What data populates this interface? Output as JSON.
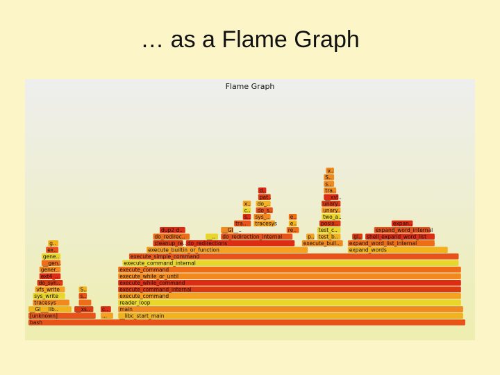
{
  "slide": {
    "title": "… as a Flame Graph"
  },
  "chart_data": {
    "type": "flamegraph",
    "title": "Flame Graph",
    "frames": [
      {
        "name": "bash",
        "depth": 0,
        "start": 0,
        "width": 1.0
      },
      {
        "name": "[unknown]",
        "depth": 1,
        "start": 0,
        "width": 0.155
      },
      {
        "name": "...",
        "depth": 1,
        "start": 0.165,
        "width": 0.03
      },
      {
        "name": "__libc_start_main",
        "depth": 1,
        "start": 0.205,
        "width": 0.79
      },
      {
        "name": "__GI___lib..",
        "depth": 2,
        "start": 0,
        "width": 0.1
      },
      {
        "name": "__xs..",
        "depth": 2,
        "start": 0.105,
        "width": 0.045
      },
      {
        "name": "c..",
        "depth": 2,
        "start": 0.165,
        "width": 0.025
      },
      {
        "name": "main",
        "depth": 2,
        "start": 0.205,
        "width": 0.79
      },
      {
        "name": "tracesys",
        "depth": 3,
        "start": 0.01,
        "width": 0.085
      },
      {
        "name": "",
        "depth": 3,
        "start": 0.115,
        "width": 0.03
      },
      {
        "name": "reader_loop",
        "depth": 3,
        "start": 0.205,
        "width": 0.785
      },
      {
        "name": "sys_write",
        "depth": 4,
        "start": 0.01,
        "width": 0.075
      },
      {
        "name": "s..",
        "depth": 4,
        "start": 0.115,
        "width": 0.02
      },
      {
        "name": "execute_command",
        "depth": 4,
        "start": 0.205,
        "width": 0.785
      },
      {
        "name": "vfs_write",
        "depth": 5,
        "start": 0.015,
        "width": 0.07
      },
      {
        "name": "S..",
        "depth": 5,
        "start": 0.115,
        "width": 0.02
      },
      {
        "name": "execute_command_internal",
        "depth": 5,
        "start": 0.205,
        "width": 0.785
      },
      {
        "name": "do_syn..",
        "depth": 6,
        "start": 0.02,
        "width": 0.06
      },
      {
        "name": "execute_while_command",
        "depth": 6,
        "start": 0.205,
        "width": 0.785
      },
      {
        "name": "ext4_..",
        "depth": 7,
        "start": 0.025,
        "width": 0.05
      },
      {
        "name": "execute_while_or_until",
        "depth": 7,
        "start": 0.205,
        "width": 0.785
      },
      {
        "name": "gener..",
        "depth": 8,
        "start": 0.025,
        "width": 0.05
      },
      {
        "name": "execute_command",
        "depth": 8,
        "start": 0.205,
        "width": 0.785
      },
      {
        "name": "__gen..",
        "depth": 9,
        "start": 0.03,
        "width": 0.045
      },
      {
        "name": "execute_command_internal",
        "depth": 9,
        "start": 0.215,
        "width": 0.77
      },
      {
        "name": "gene..",
        "depth": 10,
        "start": 0.03,
        "width": 0.045
      },
      {
        "name": "execute_simple_command",
        "depth": 10,
        "start": 0.23,
        "width": 0.755
      },
      {
        "name": "ex..",
        "depth": 11,
        "start": 0.04,
        "width": 0.03
      },
      {
        "name": "execute_builtin_or_function",
        "depth": 11,
        "start": 0.27,
        "width": 0.37
      },
      {
        "name": "expand_words",
        "depth": 11,
        "start": 0.73,
        "width": 0.23
      },
      {
        "name": "g..",
        "depth": 12,
        "start": 0.045,
        "width": 0.025
      },
      {
        "name": "cleanup_re..",
        "depth": 12,
        "start": 0.285,
        "width": 0.07
      },
      {
        "name": "do_redirections",
        "depth": 12,
        "start": 0.36,
        "width": 0.25
      },
      {
        "name": "execute_buil..",
        "depth": 12,
        "start": 0.625,
        "width": 0.095
      },
      {
        "name": "expand_word_list_internal",
        "depth": 12,
        "start": 0.73,
        "width": 0.2
      },
      {
        "name": "do_redirec..",
        "depth": 13,
        "start": 0.285,
        "width": 0.085
      },
      {
        "name": "__..",
        "depth": 13,
        "start": 0.405,
        "width": 0.03
      },
      {
        "name": "do_redirection_internal",
        "depth": 13,
        "start": 0.44,
        "width": 0.165
      },
      {
        "name": "p..",
        "depth": 13,
        "start": 0.635,
        "width": 0.02
      },
      {
        "name": "test_b..",
        "depth": 13,
        "start": 0.66,
        "width": 0.055
      },
      {
        "name": "gl..",
        "depth": 13,
        "start": 0.74,
        "width": 0.025
      },
      {
        "name": "shell_expand_word_list",
        "depth": 13,
        "start": 0.77,
        "width": 0.16
      },
      {
        "name": "dup2 d..",
        "depth": 14,
        "start": 0.3,
        "width": 0.06
      },
      {
        "name": "__GI__..",
        "depth": 14,
        "start": 0.44,
        "width": 0.03
      },
      {
        "name": "re..",
        "depth": 14,
        "start": 0.59,
        "width": 0.03
      },
      {
        "name": "test_c..",
        "depth": 14,
        "start": 0.66,
        "width": 0.055
      },
      {
        "name": "expand_word_internal",
        "depth": 14,
        "start": 0.79,
        "width": 0.13
      },
      {
        "name": "tra..",
        "depth": 15,
        "start": 0.47,
        "width": 0.04
      },
      {
        "name": "tracesys",
        "depth": 15,
        "start": 0.515,
        "width": 0.05
      },
      {
        "name": "e..",
        "depth": 15,
        "start": 0.595,
        "width": 0.02
      },
      {
        "name": "posix..",
        "depth": 15,
        "start": 0.665,
        "width": 0.05
      },
      {
        "name": "expan..",
        "depth": 15,
        "start": 0.83,
        "width": 0.05
      },
      {
        "name": "s..",
        "depth": 16,
        "start": 0.49,
        "width": 0.02
      },
      {
        "name": "sys_..",
        "depth": 16,
        "start": 0.515,
        "width": 0.04
      },
      {
        "name": "e..",
        "depth": 16,
        "start": 0.595,
        "width": 0.02
      },
      {
        "name": "two_a..",
        "depth": 16,
        "start": 0.67,
        "width": 0.045
      },
      {
        "name": "c..",
        "depth": 17,
        "start": 0.49,
        "width": 0.02
      },
      {
        "name": "do_s..",
        "depth": 17,
        "start": 0.52,
        "width": 0.04
      },
      {
        "name": "unary..",
        "depth": 17,
        "start": 0.67,
        "width": 0.045
      },
      {
        "name": "x..",
        "depth": 18,
        "start": 0.49,
        "width": 0.02
      },
      {
        "name": "do_..",
        "depth": 18,
        "start": 0.52,
        "width": 0.035
      },
      {
        "name": "unary..",
        "depth": 18,
        "start": 0.67,
        "width": 0.045
      },
      {
        "name": "pat..",
        "depth": 19,
        "start": 0.525,
        "width": 0.03
      },
      {
        "name": "__xst..",
        "depth": 19,
        "start": 0.675,
        "width": 0.035
      },
      {
        "name": "d..",
        "depth": 20,
        "start": 0.525,
        "width": 0.02
      },
      {
        "name": "tra..",
        "depth": 20,
        "start": 0.675,
        "width": 0.03
      },
      {
        "name": "s..",
        "depth": 21,
        "start": 0.675,
        "width": 0.025
      },
      {
        "name": "S..",
        "depth": 22,
        "start": 0.675,
        "width": 0.025
      },
      {
        "name": "v..",
        "depth": 23,
        "start": 0.68,
        "width": 0.02
      }
    ]
  }
}
